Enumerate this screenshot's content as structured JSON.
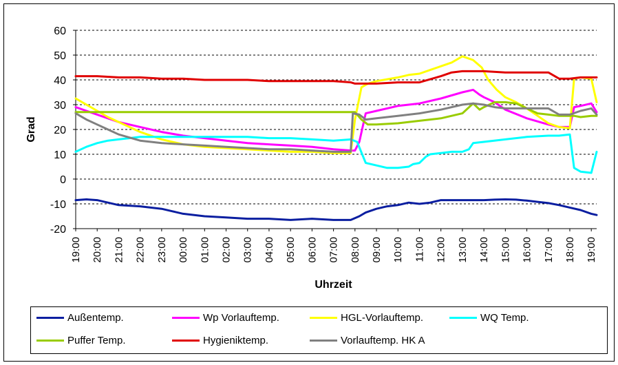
{
  "chart_data": {
    "type": "line",
    "xlabel": "Uhrzeit",
    "ylabel": "Grad",
    "ylim": [
      -20,
      60
    ],
    "yticks": [
      -20,
      -10,
      0,
      10,
      20,
      30,
      40,
      50,
      60
    ],
    "xlim": [
      0,
      24.25
    ],
    "xticks": [
      "19:00",
      "20:00",
      "21:00",
      "22:00",
      "23:00",
      "00:00",
      "01:00",
      "02:00",
      "03:00",
      "04:00",
      "05:00",
      "06:00",
      "07:00",
      "08:00",
      "09:00",
      "10:00",
      "11:00",
      "12:00",
      "13:00",
      "14:00",
      "15:00",
      "16:00",
      "17:00",
      "18:00",
      "19:00"
    ],
    "grid": "horizontal-dashed",
    "legend_position": "bottom",
    "series": [
      {
        "name": "Außentemp.",
        "color": "#0a1ea0",
        "x": [
          0,
          0.5,
          1,
          1.5,
          2,
          3,
          4,
          4.5,
          5,
          6,
          7,
          8,
          9,
          10,
          11,
          12,
          12.8,
          13.2,
          13.5,
          14,
          14.5,
          15,
          15.5,
          16,
          16.5,
          17,
          17.5,
          18,
          18.5,
          19,
          19.5,
          20,
          20.5,
          21,
          21.5,
          22,
          22.5,
          23,
          23.5,
          24,
          24.25
        ],
        "y": [
          -8.5,
          -8.2,
          -8.5,
          -9.5,
          -10.5,
          -11,
          -12,
          -13,
          -14,
          -15,
          -15.5,
          -16,
          -16,
          -16.5,
          -16,
          -16.5,
          -16.5,
          -15,
          -13.5,
          -12,
          -11,
          -10.5,
          -9.5,
          -10,
          -9.5,
          -8.5,
          -8.5,
          -8.5,
          -8.5,
          -8.5,
          -8.3,
          -8.2,
          -8.3,
          -8.7,
          -9.2,
          -9.7,
          -10.5,
          -11.5,
          -12.5,
          -14,
          -14.5
        ]
      },
      {
        "name": "Wp Vorlauftemp.",
        "color": "#ff00ff",
        "x": [
          0,
          1,
          2,
          3,
          4,
          5,
          6,
          7,
          8,
          9,
          10,
          11,
          12,
          12.8,
          13.0,
          13.2,
          13.5,
          14,
          15,
          16,
          17,
          18,
          18.5,
          18.8,
          19,
          19.5,
          20,
          21,
          22,
          22.5,
          23,
          23.2,
          23.5,
          24,
          24.25
        ],
        "y": [
          29,
          26,
          23,
          21,
          19,
          17.5,
          16.5,
          15.5,
          14.5,
          14,
          13.5,
          13,
          12,
          11.5,
          11.5,
          15,
          26.5,
          27.5,
          29.5,
          30.5,
          32.5,
          35,
          36,
          34,
          33,
          31,
          28,
          24.5,
          22,
          21,
          21,
          29,
          29.5,
          30.5,
          27
        ]
      },
      {
        "name": "HGL-Vorlauftemp.",
        "color": "#ffff00",
        "x": [
          0,
          0.7,
          1.5,
          2.5,
          3,
          4,
          5,
          6,
          7,
          8,
          9,
          10,
          11,
          12,
          12.8,
          13.0,
          13.3,
          13.6,
          14,
          15,
          15.5,
          16,
          16.5,
          17,
          17.5,
          18,
          18.5,
          18.9,
          19.2,
          19.6,
          20,
          20.5,
          21,
          21.5,
          22,
          22.5,
          23,
          23.2,
          23.5,
          24,
          24.25
        ],
        "y": [
          32.5,
          29,
          25,
          21,
          19,
          16,
          14,
          13,
          12.5,
          12,
          11.5,
          11,
          11,
          10.5,
          10.5,
          24,
          37,
          38.5,
          39.5,
          41,
          42,
          42.5,
          44,
          45.5,
          47,
          49.5,
          48,
          45,
          40,
          36,
          33,
          31,
          28.5,
          25.5,
          22.5,
          21,
          20.5,
          40.5,
          41,
          40.5,
          31
        ]
      },
      {
        "name": "WQ Temp.",
        "color": "#00ffff",
        "x": [
          0,
          0.5,
          1,
          1.5,
          2,
          2.5,
          3,
          4,
          5,
          6,
          7,
          8,
          9,
          10,
          11,
          12,
          12.8,
          13.1,
          13.5,
          14,
          14.5,
          15,
          15.5,
          15.7,
          16,
          16.3,
          16.5,
          17,
          17.5,
          18,
          18.3,
          18.5,
          19,
          20,
          21,
          22,
          22.5,
          23,
          23.2,
          23.5,
          24,
          24.25
        ],
        "y": [
          11,
          13,
          14.5,
          15.5,
          16,
          16.5,
          17,
          17,
          17,
          17,
          17,
          17,
          16.5,
          16.5,
          16,
          15.5,
          16,
          15,
          6.5,
          5.5,
          4.5,
          4.5,
          5,
          6,
          6.5,
          9,
          10,
          10.5,
          11,
          11,
          12,
          14.5,
          15,
          16,
          17,
          17.5,
          17.5,
          18,
          4.5,
          3,
          2.5,
          11
        ]
      },
      {
        "name": "Puffer Temp.",
        "color": "#99cc00",
        "x": [
          0,
          1,
          2,
          3,
          4,
          5,
          6,
          7,
          8,
          9,
          10,
          11,
          12,
          12.8,
          13.0,
          13.3,
          13.6,
          14,
          15,
          16,
          17,
          18,
          18.5,
          18.8,
          19,
          19.5,
          20,
          20.5,
          21,
          21.5,
          22,
          22.5,
          23,
          23.2,
          23.5,
          24,
          24.25
        ],
        "y": [
          27,
          27,
          27,
          27,
          27,
          27,
          27,
          27,
          27,
          27,
          27,
          27,
          27,
          27,
          27,
          24,
          22,
          22,
          22.5,
          23.5,
          24.5,
          26.5,
          30.5,
          28,
          29,
          31,
          31,
          30.5,
          28.5,
          26.5,
          26,
          25.5,
          25.5,
          25.5,
          25,
          25.5,
          25.5
        ]
      },
      {
        "name": "Hygieniktemp.",
        "color": "#e00000",
        "x": [
          0,
          1,
          2,
          3,
          4,
          5,
          6,
          7,
          8,
          9,
          10,
          11,
          12,
          12.8,
          13.0,
          13.3,
          13.6,
          14,
          15,
          16,
          17,
          17.5,
          18,
          19,
          20,
          21,
          22,
          22.5,
          23,
          23.5,
          24,
          24.25
        ],
        "y": [
          41.5,
          41.5,
          41,
          41,
          40.5,
          40.5,
          40,
          40,
          40,
          39.5,
          39.5,
          39.5,
          39.5,
          39,
          38.5,
          38.5,
          38.5,
          38.5,
          39,
          39,
          41.5,
          43,
          43.5,
          43.5,
          43,
          43,
          43,
          40.5,
          40.5,
          41,
          41,
          41
        ]
      },
      {
        "name": "Vorlauftemp. HK A",
        "color": "#808080",
        "x": [
          0,
          0.5,
          1,
          1.5,
          2,
          3,
          4,
          5,
          6,
          7,
          8,
          9,
          10,
          11,
          12,
          12.8,
          12.9,
          13.2,
          13.5,
          14,
          15,
          16,
          17,
          18,
          18.5,
          19,
          19.5,
          20,
          21,
          21.5,
          22,
          22.5,
          23,
          23,
          23.5,
          24,
          24.25
        ],
        "y": [
          26.5,
          24,
          22,
          20,
          18,
          15.5,
          14.5,
          14,
          13.5,
          13,
          12.5,
          12,
          12,
          11.5,
          11,
          11,
          26.5,
          26,
          24,
          24.5,
          25.5,
          26.5,
          28,
          30,
          30.5,
          30,
          29,
          28.5,
          28.5,
          28.5,
          28.5,
          26,
          26,
          26,
          27.5,
          28.5,
          26
        ]
      }
    ]
  }
}
